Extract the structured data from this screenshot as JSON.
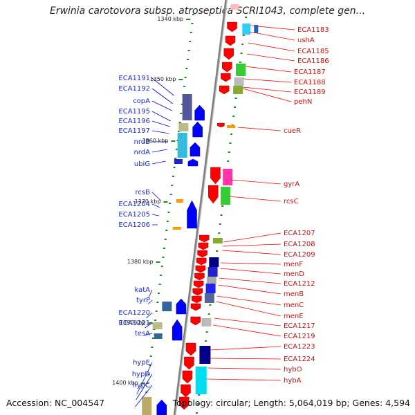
{
  "title": "Erwinia carotovora subsp. atroseptica SCRI1043, complete gen...",
  "footer": {
    "accession": "Accession: NC_004547",
    "summary": "Topology: circular; Length: 5,064,019 bp; Genes: 4,594"
  },
  "colors": {
    "forward_strand": "#ff0000",
    "reverse_strand": "#0000ff",
    "backbone": "#808080",
    "tick": "#1a8a1a"
  },
  "scale_ticks": [
    {
      "label": "1340 kbp"
    },
    {
      "label": "1350 kbp"
    },
    {
      "label": "1360 kbp"
    },
    {
      "label": "1370 kbp"
    },
    {
      "label": "1380 kbp"
    },
    {
      "label": "1390 kbp"
    },
    {
      "label": "1400 kbp"
    }
  ],
  "left_genes": [
    {
      "name": "ECA1191"
    },
    {
      "name": "ECA1192"
    },
    {
      "name": "copA"
    },
    {
      "name": "ECA1195"
    },
    {
      "name": "ECA1196"
    },
    {
      "name": "ECA1197"
    },
    {
      "name": "nrdB"
    },
    {
      "name": "nrdA"
    },
    {
      "name": "ubiG"
    },
    {
      "name": "rcsB"
    },
    {
      "name": "ECA1204"
    },
    {
      "name": "ECA1205"
    },
    {
      "name": "ECA1206"
    },
    {
      "name": "katA"
    },
    {
      "name": "tyrP"
    },
    {
      "name": "ECA1220"
    },
    {
      "name": "ECA1221"
    },
    {
      "name": "tesA"
    },
    {
      "name": "hypE"
    },
    {
      "name": "hypD"
    },
    {
      "name": "hypC"
    }
  ],
  "right_genes": [
    {
      "name": "ECA1183"
    },
    {
      "name": "ushA"
    },
    {
      "name": "ECA1185"
    },
    {
      "name": "ECA1186"
    },
    {
      "name": "ECA1187"
    },
    {
      "name": "ECA1188"
    },
    {
      "name": "ECA1189"
    },
    {
      "name": "pehN"
    },
    {
      "name": "cueR"
    },
    {
      "name": "gyrA"
    },
    {
      "name": "rcsC"
    },
    {
      "name": "ECA1207"
    },
    {
      "name": "ECA1208"
    },
    {
      "name": "ECA1209"
    },
    {
      "name": "menF"
    },
    {
      "name": "menD"
    },
    {
      "name": "ECA1212"
    },
    {
      "name": "menB"
    },
    {
      "name": "menC"
    },
    {
      "name": "menE"
    },
    {
      "name": "ECA1217"
    },
    {
      "name": "ECA1219"
    },
    {
      "name": "ECA1223"
    },
    {
      "name": "ECA1224"
    },
    {
      "name": "hybO"
    },
    {
      "name": "hybA"
    }
  ]
}
